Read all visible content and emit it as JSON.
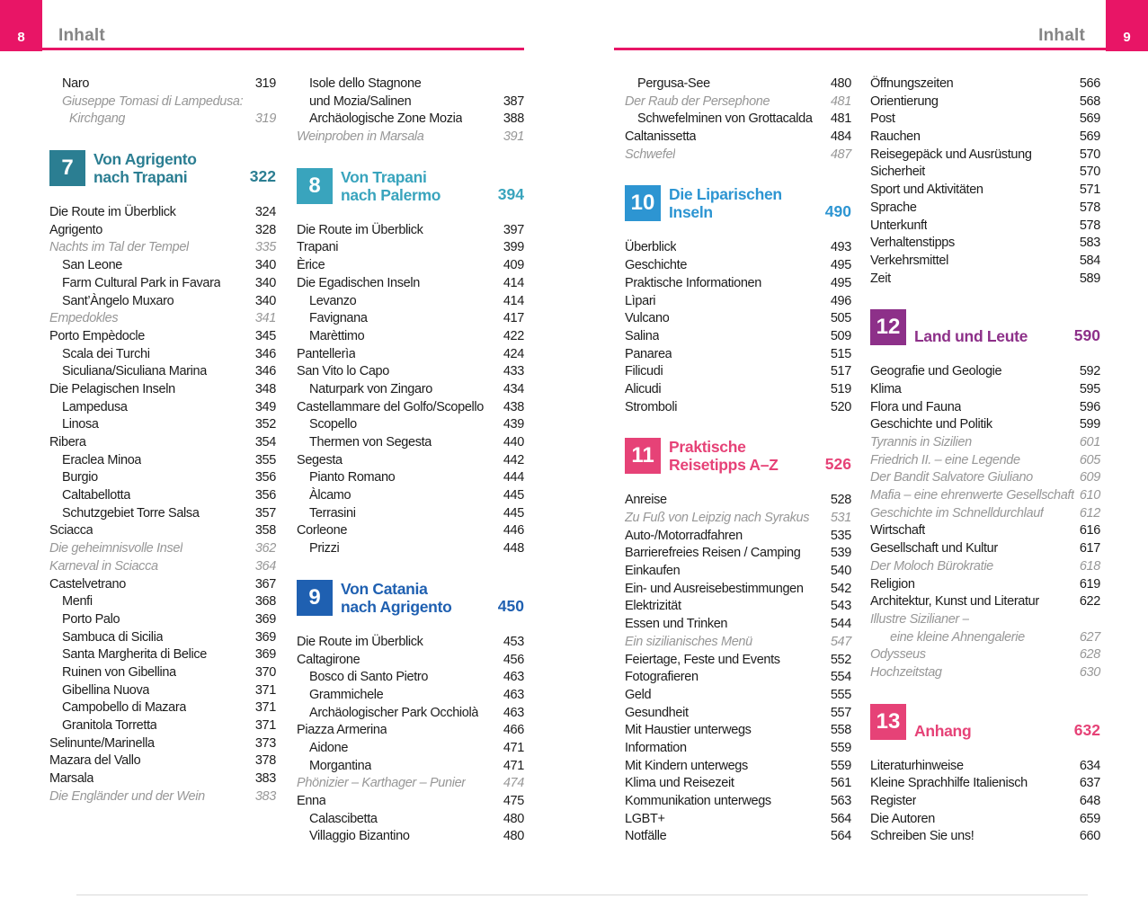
{
  "theme": {
    "accent": "#e81566",
    "header_text": "#858585",
    "entry_text": "#1c1c1c",
    "entry_italic": "#979797"
  },
  "header": {
    "title_left": "Inhalt",
    "title_right": "Inhalt",
    "page_left": "8",
    "page_right": "9"
  },
  "columns": [
    [
      {
        "type": "entry",
        "label": "Naro",
        "page": "319",
        "level": 1
      },
      {
        "type": "entry",
        "label": "Giuseppe Tomasi di Lampedusa:",
        "page": "",
        "level": 1,
        "italic": true
      },
      {
        "type": "entry",
        "label": "Kirchgang",
        "page": "319",
        "level": 2,
        "italic": true
      },
      {
        "type": "chapter",
        "num": "7",
        "lines": [
          "Von Agrigento",
          "nach Trapani"
        ],
        "page": "322",
        "color": "#2b7e92"
      },
      {
        "type": "entry",
        "label": "Die Route im Überblick",
        "page": "324",
        "level": 0
      },
      {
        "type": "entry",
        "label": "Agrigento",
        "page": "328",
        "level": 0
      },
      {
        "type": "entry",
        "label": "Nachts im Tal der Tempel",
        "page": "335",
        "level": 0,
        "italic": true
      },
      {
        "type": "entry",
        "label": "San Leone",
        "page": "340",
        "level": 1
      },
      {
        "type": "entry",
        "label": "Farm Cultural Park in Favara",
        "page": "340",
        "level": 1
      },
      {
        "type": "entry",
        "label": "Sant’Àngelo Muxaro",
        "page": "340",
        "level": 1
      },
      {
        "type": "entry",
        "label": "Empedokles",
        "page": "341",
        "level": 0,
        "italic": true
      },
      {
        "type": "entry",
        "label": "Porto Empèdocle",
        "page": "345",
        "level": 0
      },
      {
        "type": "entry",
        "label": "Scala dei Turchi",
        "page": "346",
        "level": 1
      },
      {
        "type": "entry",
        "label": "Siculiana/Siculiana Marina",
        "page": "346",
        "level": 1
      },
      {
        "type": "entry",
        "label": "Die Pelagischen Inseln",
        "page": "348",
        "level": 0
      },
      {
        "type": "entry",
        "label": "Lampedusa",
        "page": "349",
        "level": 1
      },
      {
        "type": "entry",
        "label": "Linosa",
        "page": "352",
        "level": 1
      },
      {
        "type": "entry",
        "label": "Ribera",
        "page": "354",
        "level": 0
      },
      {
        "type": "entry",
        "label": "Eraclea Minoa",
        "page": "355",
        "level": 1
      },
      {
        "type": "entry",
        "label": "Burgio",
        "page": "356",
        "level": 1
      },
      {
        "type": "entry",
        "label": "Caltabellotta",
        "page": "356",
        "level": 1
      },
      {
        "type": "entry",
        "label": "Schutzgebiet Torre Salsa",
        "page": "357",
        "level": 1
      },
      {
        "type": "entry",
        "label": "Sciacca",
        "page": "358",
        "level": 0
      },
      {
        "type": "entry",
        "label": "Die geheimnisvolle Insel",
        "page": "362",
        "level": 0,
        "italic": true
      },
      {
        "type": "entry",
        "label": "Karneval in Sciacca",
        "page": "364",
        "level": 0,
        "italic": true
      },
      {
        "type": "entry",
        "label": "Castelvetrano",
        "page": "367",
        "level": 0
      },
      {
        "type": "entry",
        "label": "Menfi",
        "page": "368",
        "level": 1
      },
      {
        "type": "entry",
        "label": "Porto Palo",
        "page": "369",
        "level": 1
      },
      {
        "type": "entry",
        "label": "Sambuca di Sicilia",
        "page": "369",
        "level": 1
      },
      {
        "type": "entry",
        "label": "Santa Margherita di Belice",
        "page": "369",
        "level": 1
      },
      {
        "type": "entry",
        "label": "Ruinen von Gibellina",
        "page": "370",
        "level": 1
      },
      {
        "type": "entry",
        "label": "Gibellina Nuova",
        "page": "371",
        "level": 1
      },
      {
        "type": "entry",
        "label": "Campobello di Mazara",
        "page": "371",
        "level": 1
      },
      {
        "type": "entry",
        "label": "Granitola Torretta",
        "page": "371",
        "level": 1
      },
      {
        "type": "entry",
        "label": "Selinunte/Marinella",
        "page": "373",
        "level": 0
      },
      {
        "type": "entry",
        "label": "Mazara del Vallo",
        "page": "378",
        "level": 0
      },
      {
        "type": "entry",
        "label": "Marsala",
        "page": "383",
        "level": 0
      },
      {
        "type": "entry",
        "label": "Die Engländer und der Wein",
        "page": "383",
        "level": 0,
        "italic": true
      }
    ],
    [
      {
        "type": "entry",
        "label": "Isole dello Stagnone",
        "page": "",
        "level": 1
      },
      {
        "type": "entry",
        "label": "und Mozia/Salinen",
        "page": "387",
        "level": 1
      },
      {
        "type": "entry",
        "label": "Archäologische Zone Mozia",
        "page": "388",
        "level": 1
      },
      {
        "type": "entry",
        "label": "Weinproben in Marsala",
        "page": "391",
        "level": 0,
        "italic": true
      },
      {
        "type": "chapter",
        "num": "8",
        "lines": [
          "Von Trapani",
          "nach Palermo"
        ],
        "page": "394",
        "color": "#39a4bd"
      },
      {
        "type": "entry",
        "label": "Die Route im Überblick",
        "page": "397",
        "level": 0
      },
      {
        "type": "entry",
        "label": "Trapani",
        "page": "399",
        "level": 0
      },
      {
        "type": "entry",
        "label": "Èrice",
        "page": "409",
        "level": 0
      },
      {
        "type": "entry",
        "label": "Die Egadischen Inseln",
        "page": "414",
        "level": 0
      },
      {
        "type": "entry",
        "label": "Levanzo",
        "page": "414",
        "level": 1
      },
      {
        "type": "entry",
        "label": "Favignana",
        "page": "417",
        "level": 1
      },
      {
        "type": "entry",
        "label": "Marèttimo",
        "page": "422",
        "level": 1
      },
      {
        "type": "entry",
        "label": "Pantellerìa",
        "page": "424",
        "level": 0
      },
      {
        "type": "entry",
        "label": "San Vito lo Capo",
        "page": "433",
        "level": 0
      },
      {
        "type": "entry",
        "label": "Naturpark von Zingaro",
        "page": "434",
        "level": 1
      },
      {
        "type": "entry",
        "label": "Castellammare del Golfo/Scopello",
        "page": "438",
        "level": 0
      },
      {
        "type": "entry",
        "label": "Scopello",
        "page": "439",
        "level": 1
      },
      {
        "type": "entry",
        "label": "Thermen von Segesta",
        "page": "440",
        "level": 1
      },
      {
        "type": "entry",
        "label": "Segesta",
        "page": "442",
        "level": 0
      },
      {
        "type": "entry",
        "label": "Pianto Romano",
        "page": "444",
        "level": 1
      },
      {
        "type": "entry",
        "label": "Àlcamo",
        "page": "445",
        "level": 1
      },
      {
        "type": "entry",
        "label": "Terrasini",
        "page": "445",
        "level": 1
      },
      {
        "type": "entry",
        "label": "Corleone",
        "page": "446",
        "level": 0
      },
      {
        "type": "entry",
        "label": "Prizzi",
        "page": "448",
        "level": 1
      },
      {
        "type": "chapter",
        "num": "9",
        "lines": [
          "Von Catania",
          "nach Agrigento"
        ],
        "page": "450",
        "color": "#1f60b1"
      },
      {
        "type": "entry",
        "label": "Die Route im Überblick",
        "page": "453",
        "level": 0
      },
      {
        "type": "entry",
        "label": "Caltagirone",
        "page": "456",
        "level": 0
      },
      {
        "type": "entry",
        "label": "Bosco di Santo Pietro",
        "page": "463",
        "level": 1
      },
      {
        "type": "entry",
        "label": "Grammichele",
        "page": "463",
        "level": 1
      },
      {
        "type": "entry",
        "label": "Archäologischer Park Occhiolà",
        "page": "463",
        "level": 1
      },
      {
        "type": "entry",
        "label": "Piazza Armerina",
        "page": "466",
        "level": 0
      },
      {
        "type": "entry",
        "label": "Aidone",
        "page": "471",
        "level": 1
      },
      {
        "type": "entry",
        "label": "Morgantina",
        "page": "471",
        "level": 1
      },
      {
        "type": "entry",
        "label": "Phönizier – Karthager – Punier",
        "page": "474",
        "level": 0,
        "italic": true
      },
      {
        "type": "entry",
        "label": "Enna",
        "page": "475",
        "level": 0
      },
      {
        "type": "entry",
        "label": "Calascibetta",
        "page": "480",
        "level": 1
      },
      {
        "type": "entry",
        "label": "Villaggio Bizantino",
        "page": "480",
        "level": 1
      }
    ],
    [
      {
        "type": "entry",
        "label": "Pergusa-See",
        "page": "480",
        "level": 1
      },
      {
        "type": "entry",
        "label": "Der Raub der Persephone",
        "page": "481",
        "level": 0,
        "italic": true
      },
      {
        "type": "entry",
        "label": "Schwefelminen von Grottacalda",
        "page": "481",
        "level": 1
      },
      {
        "type": "entry",
        "label": "Caltanissetta",
        "page": "484",
        "level": 0
      },
      {
        "type": "entry",
        "label": "Schwefel",
        "page": "487",
        "level": 0,
        "italic": true
      },
      {
        "type": "chapter",
        "num": "10",
        "lines": [
          "Die Liparischen",
          "Inseln"
        ],
        "page": "490",
        "color": "#2d95d2"
      },
      {
        "type": "entry",
        "label": "Überblick",
        "page": "493",
        "level": 0
      },
      {
        "type": "entry",
        "label": "Geschichte",
        "page": "495",
        "level": 0
      },
      {
        "type": "entry",
        "label": "Praktische Informationen",
        "page": "495",
        "level": 0
      },
      {
        "type": "entry",
        "label": "Lìpari",
        "page": "496",
        "level": 0
      },
      {
        "type": "entry",
        "label": "Vulcano",
        "page": "505",
        "level": 0
      },
      {
        "type": "entry",
        "label": "Salina",
        "page": "509",
        "level": 0
      },
      {
        "type": "entry",
        "label": "Panarea",
        "page": "515",
        "level": 0
      },
      {
        "type": "entry",
        "label": "Filicudi",
        "page": "517",
        "level": 0
      },
      {
        "type": "entry",
        "label": "Alicudi",
        "page": "519",
        "level": 0
      },
      {
        "type": "entry",
        "label": "Stromboli",
        "page": "520",
        "level": 0
      },
      {
        "type": "chapter",
        "num": "11",
        "lines": [
          "Praktische",
          "Reisetipps A–Z"
        ],
        "page": "526",
        "color": "#e64277"
      },
      {
        "type": "entry",
        "label": "Anreise",
        "page": "528",
        "level": 0
      },
      {
        "type": "entry",
        "label": "Zu Fuß von Leipzig nach Syrakus",
        "page": "531",
        "level": 0,
        "italic": true
      },
      {
        "type": "entry",
        "label": "Auto-/Motorradfahren",
        "page": "535",
        "level": 0
      },
      {
        "type": "entry",
        "label": "Barrierefreies Reisen / Camping",
        "page": "539",
        "level": 0
      },
      {
        "type": "entry",
        "label": "Einkaufen",
        "page": "540",
        "level": 0
      },
      {
        "type": "entry",
        "label": "Ein- und Ausreisebestimmungen",
        "page": "542",
        "level": 0
      },
      {
        "type": "entry",
        "label": "Elektrizität",
        "page": "543",
        "level": 0
      },
      {
        "type": "entry",
        "label": "Essen und Trinken",
        "page": "544",
        "level": 0
      },
      {
        "type": "entry",
        "label": "Ein sizilianisches Menü",
        "page": "547",
        "level": 0,
        "italic": true
      },
      {
        "type": "entry",
        "label": "Feiertage, Feste und Events",
        "page": "552",
        "level": 0
      },
      {
        "type": "entry",
        "label": "Fotografieren",
        "page": "554",
        "level": 0
      },
      {
        "type": "entry",
        "label": "Geld",
        "page": "555",
        "level": 0
      },
      {
        "type": "entry",
        "label": "Gesundheit",
        "page": "557",
        "level": 0
      },
      {
        "type": "entry",
        "label": "Mit Haustier unterwegs",
        "page": "558",
        "level": 0
      },
      {
        "type": "entry",
        "label": "Information",
        "page": "559",
        "level": 0
      },
      {
        "type": "entry",
        "label": "Mit Kindern unterwegs",
        "page": "559",
        "level": 0
      },
      {
        "type": "entry",
        "label": "Klima und Reisezeit",
        "page": "561",
        "level": 0
      },
      {
        "type": "entry",
        "label": "Kommunikation unterwegs",
        "page": "563",
        "level": 0
      },
      {
        "type": "entry",
        "label": "LGBT+",
        "page": "564",
        "level": 0
      },
      {
        "type": "entry",
        "label": "Notfälle",
        "page": "564",
        "level": 0
      }
    ],
    [
      {
        "type": "entry",
        "label": "Öffnungszeiten",
        "page": "566",
        "level": 0
      },
      {
        "type": "entry",
        "label": "Orientierung",
        "page": "568",
        "level": 0
      },
      {
        "type": "entry",
        "label": "Post",
        "page": "569",
        "level": 0
      },
      {
        "type": "entry",
        "label": "Rauchen",
        "page": "569",
        "level": 0
      },
      {
        "type": "entry",
        "label": "Reisegepäck und Ausrüstung",
        "page": "570",
        "level": 0
      },
      {
        "type": "entry",
        "label": "Sicherheit",
        "page": "570",
        "level": 0
      },
      {
        "type": "entry",
        "label": "Sport und Aktivitäten",
        "page": "571",
        "level": 0
      },
      {
        "type": "entry",
        "label": "Sprache",
        "page": "578",
        "level": 0
      },
      {
        "type": "entry",
        "label": "Unterkunft",
        "page": "578",
        "level": 0
      },
      {
        "type": "entry",
        "label": "Verhaltenstipps",
        "page": "583",
        "level": 0
      },
      {
        "type": "entry",
        "label": "Verkehrsmittel",
        "page": "584",
        "level": 0
      },
      {
        "type": "entry",
        "label": "Zeit",
        "page": "589",
        "level": 0
      },
      {
        "type": "chapter",
        "num": "12",
        "lines": [
          "Land und Leute"
        ],
        "page": "590",
        "color": "#8d3089"
      },
      {
        "type": "entry",
        "label": "Geografie und Geologie",
        "page": "592",
        "level": 0
      },
      {
        "type": "entry",
        "label": "Klima",
        "page": "595",
        "level": 0
      },
      {
        "type": "entry",
        "label": "Flora und Fauna",
        "page": "596",
        "level": 0
      },
      {
        "type": "entry",
        "label": "Geschichte und Politik",
        "page": "599",
        "level": 0
      },
      {
        "type": "entry",
        "label": "Tyrannis in Sizilien",
        "page": "601",
        "level": 0,
        "italic": true
      },
      {
        "type": "entry",
        "label": "Friedrich II. – eine Legende",
        "page": "605",
        "level": 0,
        "italic": true
      },
      {
        "type": "entry",
        "label": "Der Bandit Salvatore Giuliano",
        "page": "609",
        "level": 0,
        "italic": true
      },
      {
        "type": "entry",
        "label": "Mafia – eine ehrenwerte Gesellschaft",
        "page": "610",
        "level": 0,
        "italic": true
      },
      {
        "type": "entry",
        "label": "Geschichte im Schnelldurchlauf",
        "page": "612",
        "level": 0,
        "italic": true
      },
      {
        "type": "entry",
        "label": "Wirtschaft",
        "page": "616",
        "level": 0
      },
      {
        "type": "entry",
        "label": "Gesellschaft und Kultur",
        "page": "617",
        "level": 0
      },
      {
        "type": "entry",
        "label": "Der Moloch Bürokratie",
        "page": "618",
        "level": 0,
        "italic": true
      },
      {
        "type": "entry",
        "label": "Religion",
        "page": "619",
        "level": 0
      },
      {
        "type": "entry",
        "label": "Architektur, Kunst und Literatur",
        "page": "622",
        "level": 0
      },
      {
        "type": "entry",
        "label": "Illustre Sizilianer –",
        "page": "",
        "level": 0,
        "italic": true
      },
      {
        "type": "entry",
        "label": "eine kleine Ahnengalerie",
        "page": "627",
        "level": 2,
        "italic": true
      },
      {
        "type": "entry",
        "label": "Odysseus",
        "page": "628",
        "level": 0,
        "italic": true
      },
      {
        "type": "entry",
        "label": "Hochzeitstag",
        "page": "630",
        "level": 0,
        "italic": true
      },
      {
        "type": "chapter",
        "num": "13",
        "lines": [
          "Anhang"
        ],
        "page": "632",
        "color": "#e64277"
      },
      {
        "type": "entry",
        "label": "Literaturhinweise",
        "page": "634",
        "level": 0
      },
      {
        "type": "entry",
        "label": "Kleine Sprachhilfe Italienisch",
        "page": "637",
        "level": 0
      },
      {
        "type": "entry",
        "label": "Register",
        "page": "648",
        "level": 0
      },
      {
        "type": "entry",
        "label": "Die Autoren",
        "page": "659",
        "level": 0
      },
      {
        "type": "entry",
        "label": "Schreiben Sie uns!",
        "page": "660",
        "level": 0
      }
    ]
  ]
}
